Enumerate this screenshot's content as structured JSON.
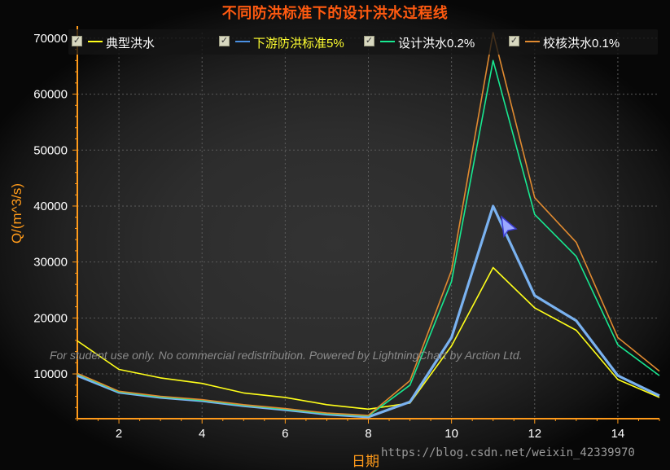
{
  "chart_data": {
    "type": "line",
    "title": "不同防洪标准下的设计洪水过程线",
    "xlabel": "日期",
    "ylabel": "Q/(m^3/s)",
    "xlim": [
      1,
      15
    ],
    "ylim": [
      2000,
      71000
    ],
    "x_ticks": [
      2,
      4,
      6,
      8,
      10,
      12,
      14
    ],
    "y_ticks": [
      10000,
      20000,
      30000,
      40000,
      50000,
      60000,
      70000
    ],
    "grid": true,
    "legend_position": "top",
    "x": [
      1,
      2,
      3,
      4,
      5,
      6,
      7,
      8,
      9,
      10,
      11,
      12,
      13,
      14,
      15
    ],
    "series": [
      {
        "name": "典型洪水",
        "color": "#ffff1a",
        "width": 1.6,
        "values": [
          15900,
          10800,
          9300,
          8300,
          6600,
          5800,
          4500,
          3700,
          4800,
          15000,
          29000,
          21800,
          17800,
          9000,
          5800
        ]
      },
      {
        "name": "下游防洪标准5%",
        "color": "#7ab2f0",
        "width": 3.2,
        "values": [
          9700,
          6700,
          5800,
          5200,
          4300,
          3600,
          2800,
          2300,
          5000,
          16500,
          40000,
          24000,
          19500,
          9700,
          6100
        ]
      },
      {
        "name": "设计洪水0.2%",
        "color": "#18e890",
        "width": 1.6,
        "values": [
          10000,
          6800,
          5900,
          5300,
          4400,
          3700,
          2900,
          2500,
          8000,
          26500,
          66000,
          38500,
          31000,
          15200,
          9700
        ]
      },
      {
        "name": "校核洪水0.1%",
        "color": "#e08a30",
        "width": 1.6,
        "values": [
          10100,
          6900,
          6000,
          5400,
          4500,
          3800,
          3000,
          2600,
          8800,
          28500,
          71000,
          41500,
          33500,
          16500,
          10500
        ]
      }
    ]
  },
  "legend": [
    {
      "label": "典型洪水",
      "color": "#ffff1a",
      "text_color": "#ffffff"
    },
    {
      "label": "下游防洪标准5%",
      "color": "#4a90e2",
      "text_color": "#ffff30"
    },
    {
      "label": "设计洪水0.2%",
      "color": "#18e890",
      "text_color": "#ffffff"
    },
    {
      "label": "校核洪水0.1%",
      "color": "#e08a30",
      "text_color": "#ffffff"
    }
  ],
  "watermark": "For student use only. No commercial redistribution. Powered by LightningChart by Arction Ltd.",
  "url_mark": "https://blog.csdn.net/weixin_42339970",
  "colors": {
    "axis": "#ff9a1a",
    "title": "#ff5a10",
    "tick_label": "#ffffff"
  }
}
